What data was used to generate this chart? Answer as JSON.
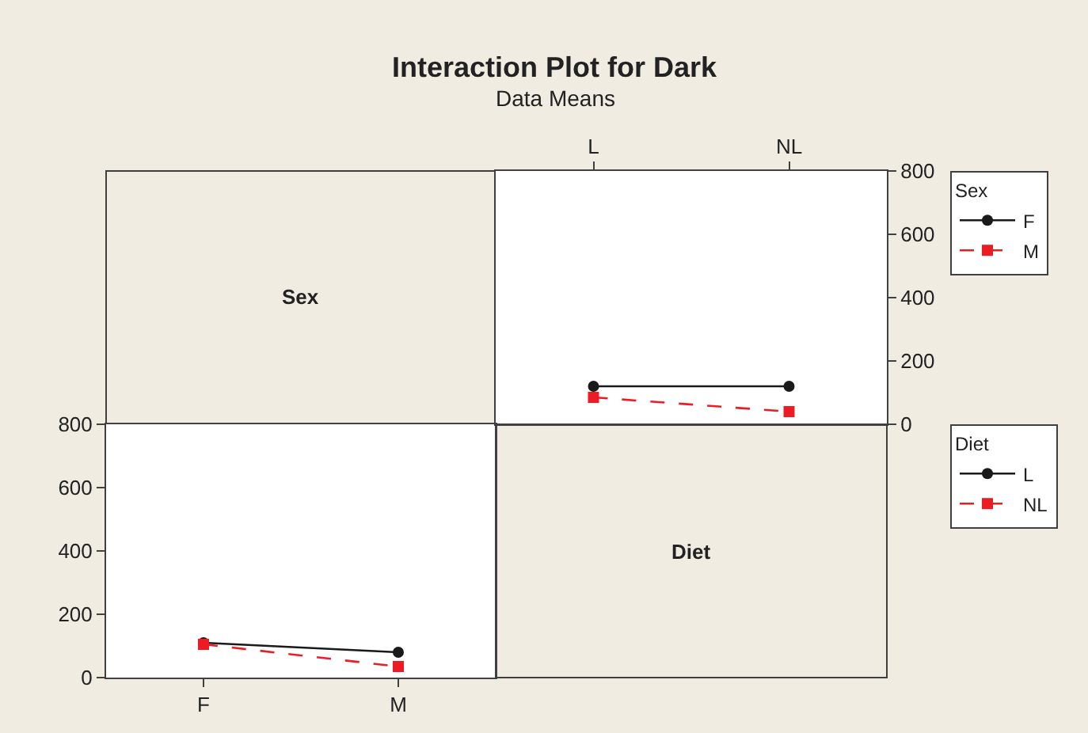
{
  "chart_data": [
    {
      "type": "other",
      "title": "Interaction Plot for Dark",
      "subtitle": "Data Means",
      "annotations": [
        "Sex"
      ]
    },
    {
      "type": "line",
      "categories": [
        "L",
        "NL"
      ],
      "ylim": [
        0,
        800
      ],
      "yticks": [
        0,
        200,
        400,
        600,
        800
      ],
      "legend": "top right",
      "legend_title": "Sex",
      "series": [
        {
          "name": "F",
          "color": "#1a1a1a",
          "values": [
            120,
            120
          ],
          "marker": "circle",
          "line_style": "solid"
        },
        {
          "name": "M",
          "color": "#ed1c24",
          "values": [
            85,
            40
          ],
          "marker": "square",
          "line_style": "dashed"
        }
      ]
    },
    {
      "type": "line",
      "categories": [
        "F",
        "M"
      ],
      "ylim": [
        0,
        800
      ],
      "yticks": [
        0,
        200,
        400,
        600,
        800
      ],
      "legend": "top right",
      "legend_title": "Diet",
      "series": [
        {
          "name": "L",
          "color": "#1a1a1a",
          "values": [
            110,
            80
          ],
          "marker": "circle",
          "line_style": "solid"
        },
        {
          "name": "NL",
          "color": "#ed1c24",
          "values": [
            105,
            35
          ],
          "marker": "square",
          "line_style": "dashed"
        }
      ]
    },
    {
      "type": "other",
      "annotations": [
        "Diet"
      ]
    }
  ]
}
